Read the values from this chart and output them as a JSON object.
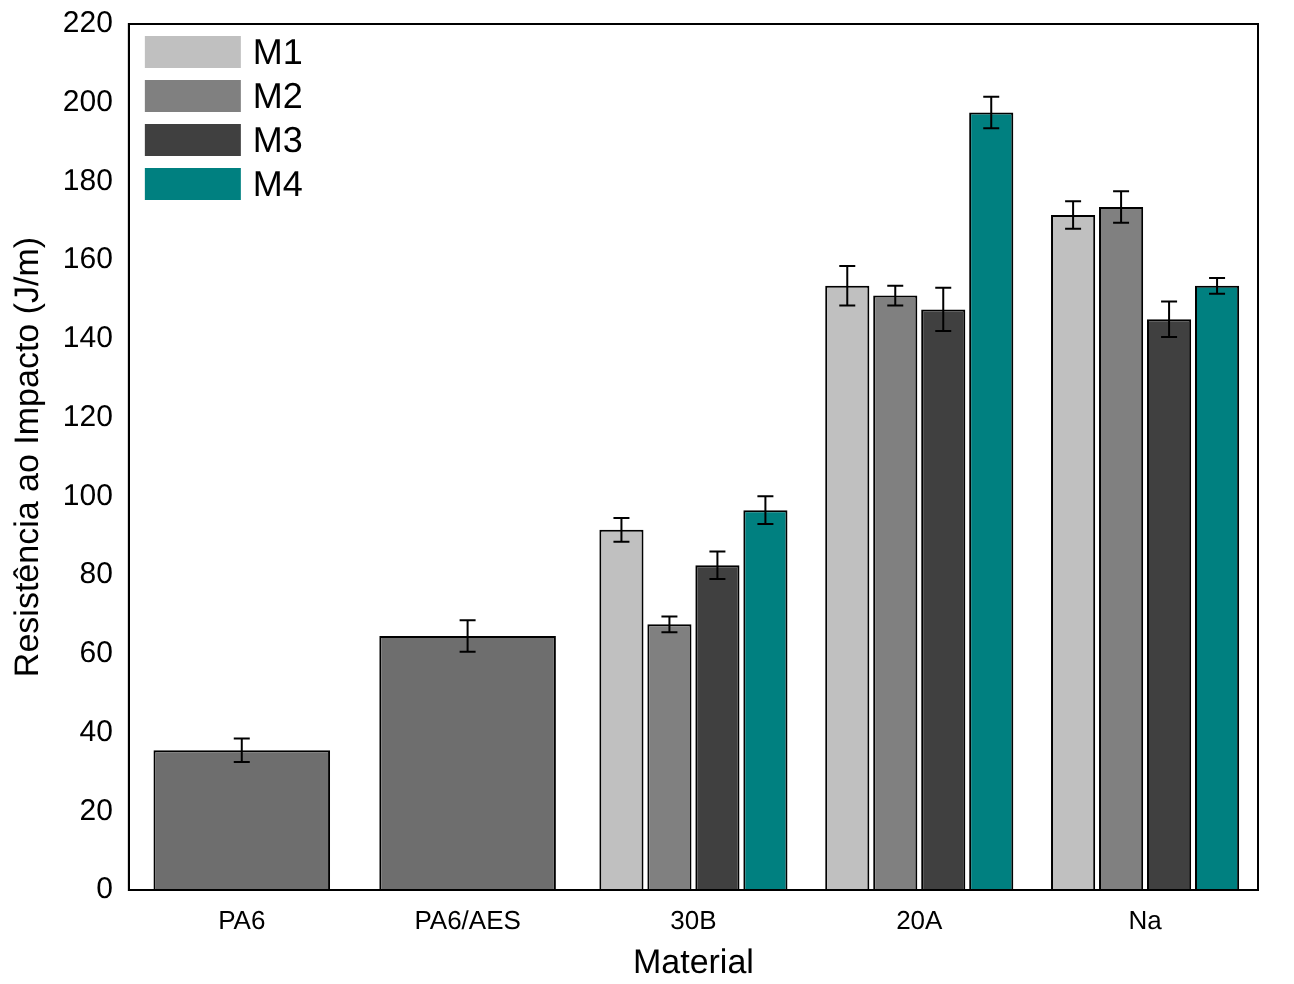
{
  "chart_data": {
    "type": "bar",
    "xlabel": "Material",
    "ylabel": "Resistência ao Impacto (J/m)",
    "categories": [
      "PA6",
      "PA6/AES",
      "30B",
      "20A",
      "Na"
    ],
    "series": [
      {
        "name": "M1",
        "color": "#c0c0c0",
        "values": [
          null,
          null,
          91.5,
          153.5,
          171.5
        ],
        "errors": [
          null,
          null,
          3,
          5,
          3.5
        ]
      },
      {
        "name": "M2",
        "color": "#808080",
        "values": [
          null,
          null,
          67.5,
          151,
          173.5
        ],
        "errors": [
          null,
          null,
          2,
          2.5,
          4
        ]
      },
      {
        "name": "M3",
        "color": "#404040",
        "values": [
          null,
          null,
          82.5,
          147.5,
          145
        ],
        "errors": [
          null,
          null,
          3.5,
          5.5,
          4.5
        ]
      },
      {
        "name": "M4",
        "color": "#008080",
        "values": [
          null,
          null,
          96.5,
          197.5,
          153.5
        ],
        "errors": [
          null,
          null,
          3.5,
          4,
          2
        ]
      },
      {
        "color": "#6e6e6e",
        "values": [
          35.5,
          64.5,
          null,
          null,
          null
        ],
        "errors": [
          3,
          4,
          null,
          null,
          null
        ]
      }
    ],
    "ylim": [
      0,
      220
    ],
    "yticks": [
      0,
      20,
      40,
      60,
      80,
      100,
      120,
      140,
      160,
      180,
      200,
      220
    ],
    "legend": "top left",
    "grid": false
  }
}
